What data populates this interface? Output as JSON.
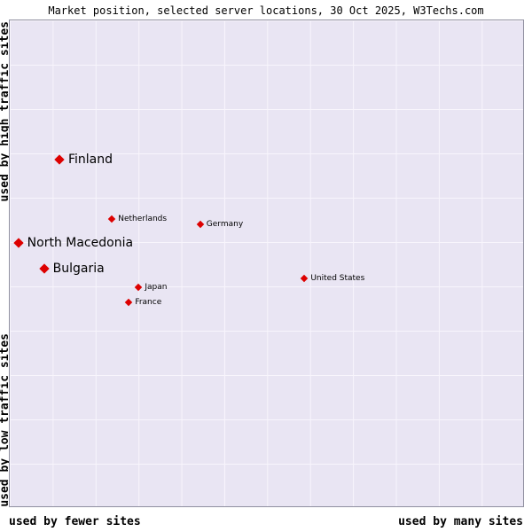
{
  "title": "Market position, selected server locations, 30 Oct 2025, W3Techs.com",
  "axes": {
    "y_top": "used by high traffic sites",
    "y_bottom": "used by low traffic sites",
    "x_left": "used by fewer sites",
    "x_right": "used by many sites"
  },
  "colors": {
    "plot_bg": "#e9e5f3",
    "grid": "#f8f5fc",
    "point": "#dd0000",
    "border": "#9090a0"
  },
  "chart_data": {
    "type": "scatter",
    "title": "Market position, selected server locations, 30 Oct 2025, W3Techs.com",
    "x_axis": {
      "label_left": "used by fewer sites",
      "label_right": "used by many sites",
      "scale": "qualitative"
    },
    "y_axis": {
      "label_top": "used by high traffic sites",
      "label_bottom": "used by low traffic sites",
      "scale": "qualitative"
    },
    "units": "percent of plot area, x from left, y from top",
    "grid": true,
    "points": [
      {
        "label": "Finland",
        "x": 9.5,
        "y": 28.7,
        "emphasis": "large"
      },
      {
        "label": "Netherlands",
        "x": 19.9,
        "y": 40.9,
        "emphasis": "small"
      },
      {
        "label": "Germany",
        "x": 37.1,
        "y": 42.0,
        "emphasis": "small"
      },
      {
        "label": "North Macedonia",
        "x": 1.5,
        "y": 45.8,
        "emphasis": "large"
      },
      {
        "label": "Bulgaria",
        "x": 6.5,
        "y": 51.1,
        "emphasis": "large"
      },
      {
        "label": "United States",
        "x": 57.4,
        "y": 53.1,
        "emphasis": "small"
      },
      {
        "label": "Japan",
        "x": 25.1,
        "y": 54.9,
        "emphasis": "small"
      },
      {
        "label": "France",
        "x": 23.2,
        "y": 58.0,
        "emphasis": "small"
      }
    ]
  }
}
